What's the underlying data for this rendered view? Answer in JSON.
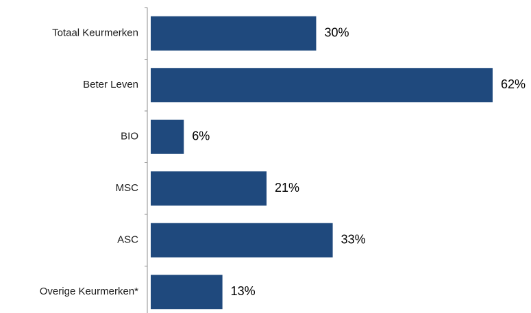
{
  "chart_data": {
    "type": "bar",
    "orientation": "horizontal",
    "categories": [
      "Totaal Keurmerken",
      "Beter Leven",
      "BIO",
      "MSC",
      "ASC",
      "Overige Keurmerken*"
    ],
    "values": [
      30,
      62,
      6,
      21,
      33,
      13
    ],
    "value_labels": [
      "30%",
      "62%",
      "6%",
      "21%",
      "33%",
      "13%"
    ],
    "xlim": [
      0,
      62
    ],
    "grid": false,
    "legend": "none",
    "bar_color": "#1f497d",
    "title": "",
    "xlabel": "",
    "ylabel": ""
  }
}
